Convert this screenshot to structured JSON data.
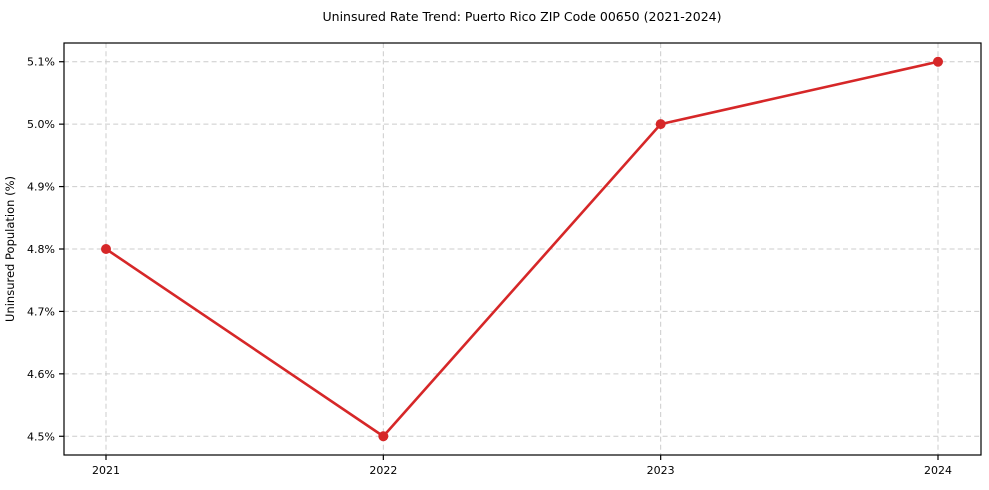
{
  "chart_data": {
    "type": "line",
    "title": "Uninsured Rate Trend: Puerto Rico ZIP Code 00650 (2021-2024)",
    "xlabel": "",
    "ylabel": "Uninsured Population (%)",
    "categories": [
      "2021",
      "2022",
      "2023",
      "2024"
    ],
    "series": [
      {
        "values": [
          4.8,
          4.5,
          5.0,
          5.1
        ],
        "color": "#d62728",
        "marker": "circle"
      }
    ],
    "yticks": [
      {
        "value": 4.5,
        "label": "4.5%"
      },
      {
        "value": 4.6,
        "label": "4.6%"
      },
      {
        "value": 4.7,
        "label": "4.7%"
      },
      {
        "value": 4.8,
        "label": "4.8%"
      },
      {
        "value": 4.9,
        "label": "4.9%"
      },
      {
        "value": 5.0,
        "label": "5.0%"
      },
      {
        "value": 5.1,
        "label": "5.1%"
      }
    ],
    "ylim": [
      4.47,
      5.13
    ],
    "grid": true,
    "grid_style": "dashed",
    "legend_position": "none",
    "colors": {
      "line": "#d62728",
      "marker": "#d62728",
      "grid": "#cccccc",
      "spine": "#000000",
      "text": "#000000",
      "background": "#ffffff"
    }
  }
}
